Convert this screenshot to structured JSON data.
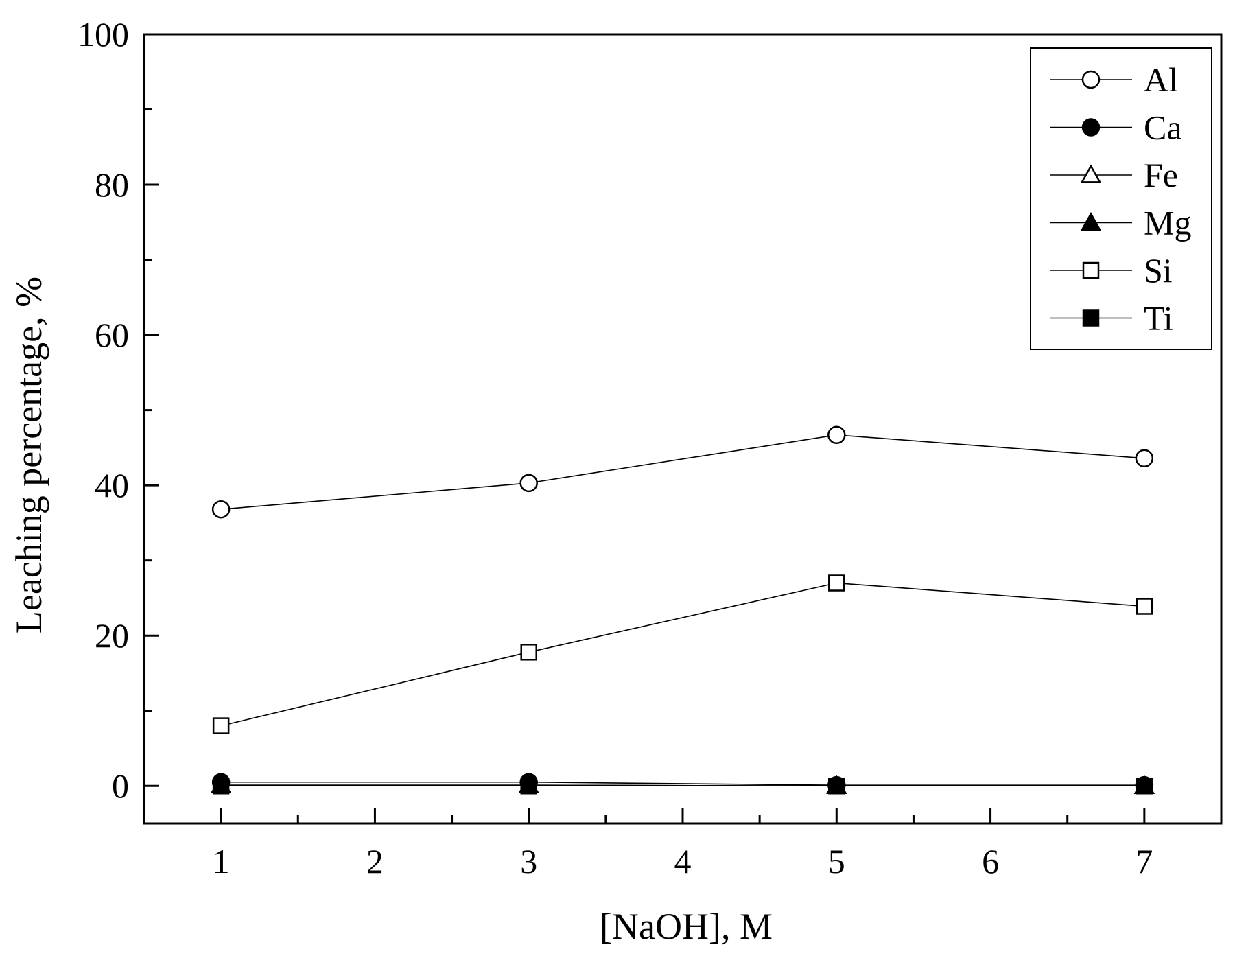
{
  "chart_data": {
    "type": "line",
    "xlabel": "[NaOH], M",
    "ylabel": "Leaching percentage, %",
    "xlim": [
      0.5,
      7.5
    ],
    "ylim": [
      -5,
      100
    ],
    "x_ticks": [
      1,
      2,
      3,
      4,
      5,
      6,
      7
    ],
    "y_ticks": [
      0,
      20,
      40,
      60,
      80,
      100
    ],
    "x_tick_labels": [
      "1",
      "2",
      "3",
      "4",
      "5",
      "6",
      "7"
    ],
    "y_tick_labels": [
      "0",
      "20",
      "40",
      "60",
      "80",
      "100"
    ],
    "grid": false,
    "legend_position": "top-right",
    "x": [
      1,
      3,
      5,
      7
    ],
    "series": [
      {
        "name": "Al",
        "marker": "circle-open",
        "values": [
          36.8,
          40.3,
          46.7,
          43.6
        ]
      },
      {
        "name": "Ca",
        "marker": "circle-filled",
        "values": [
          0.5,
          0.5,
          0.1,
          0.1
        ]
      },
      {
        "name": "Fe",
        "marker": "triangle-open",
        "values": [
          0.1,
          0.1,
          0.0,
          0.0
        ]
      },
      {
        "name": "Mg",
        "marker": "triangle-filled",
        "values": [
          0.1,
          0.1,
          0.0,
          0.0
        ]
      },
      {
        "name": "Si",
        "marker": "square-open",
        "values": [
          8.0,
          17.8,
          27.0,
          23.9
        ]
      },
      {
        "name": "Ti",
        "marker": "square-filled",
        "values": [
          0.0,
          0.0,
          0.0,
          0.0
        ]
      }
    ]
  }
}
